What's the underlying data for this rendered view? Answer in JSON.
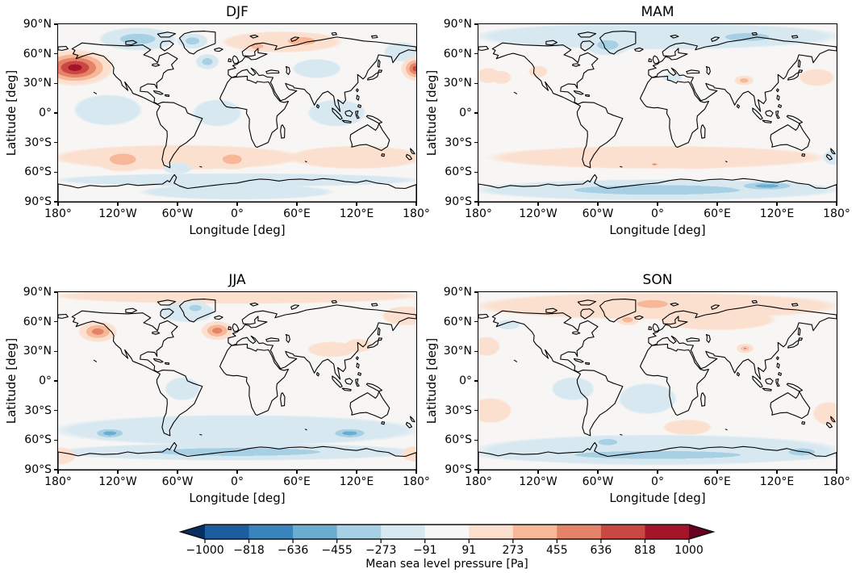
{
  "figure": {
    "panels": [
      {
        "title": "DJF",
        "xlabel": "Longitude [deg]",
        "ylabel": "Latitude [deg]",
        "xticks": [
          "180°",
          "120°W",
          "60°W",
          "0°",
          "60°E",
          "120°E",
          "180°"
        ],
        "yticks": [
          "90°N",
          "60°N",
          "30°N",
          "0°",
          "30°S",
          "60°S",
          "90°S"
        ]
      },
      {
        "title": "MAM",
        "xlabel": "Longitude [deg]",
        "ylabel": "Latitude [deg]",
        "xticks": [
          "180°",
          "120°W",
          "60°W",
          "0°",
          "60°E",
          "120°E",
          "180°"
        ],
        "yticks": [
          "90°N",
          "60°N",
          "30°N",
          "0°",
          "30°S",
          "60°S",
          "90°S"
        ]
      },
      {
        "title": "JJA",
        "xlabel": "Longitude [deg]",
        "ylabel": "Latitude [deg]",
        "xticks": [
          "180°",
          "120°W",
          "60°W",
          "0°",
          "60°E",
          "120°E",
          "180°"
        ],
        "yticks": [
          "90°N",
          "60°N",
          "30°N",
          "0°",
          "30°S",
          "60°S",
          "90°S"
        ]
      },
      {
        "title": "SON",
        "xlabel": "Longitude [deg]",
        "ylabel": "Latitude [deg]",
        "xticks": [
          "180°",
          "120°W",
          "60°W",
          "0°",
          "60°E",
          "120°E",
          "180°"
        ],
        "yticks": [
          "90°N",
          "60°N",
          "30°N",
          "0°",
          "30°S",
          "60°S",
          "90°S"
        ]
      }
    ],
    "colorbar": {
      "label": "Mean sea level pressure [Pa]",
      "tick_labels": [
        "−1000",
        "−818",
        "−636",
        "−455",
        "−273",
        "−91",
        "91",
        "273",
        "455",
        "636",
        "818",
        "1000"
      ],
      "colors": [
        "#053061",
        "#1c5da0",
        "#3884bb",
        "#6bacd1",
        "#a7d0e4",
        "#d7e8f1",
        "#f7f7f7",
        "#fce0cf",
        "#f7b799",
        "#e58368",
        "#ca4842",
        "#a61429",
        "#67001f"
      ]
    }
  },
  "chart_data": {
    "type": "heatmap",
    "subtype": "filled-contour world maps, 2x2 seasonal grid",
    "x": {
      "label": "Longitude [deg]",
      "range": [
        -180,
        180
      ],
      "ticks_deg": [
        -180,
        -120,
        -60,
        0,
        60,
        120,
        180
      ]
    },
    "y": {
      "label": "Latitude [deg]",
      "range": [
        -90,
        90
      ],
      "ticks_deg": [
        90,
        60,
        30,
        0,
        -30,
        -60,
        -90
      ]
    },
    "colorbar": {
      "label": "Mean sea level pressure [Pa]",
      "levels_pa": [
        -1000,
        -818,
        -636,
        -455,
        -273,
        -91,
        91,
        273,
        455,
        636,
        818,
        1000
      ],
      "colormap": "RdBu_r",
      "extend": "both"
    },
    "panels": [
      {
        "season": "DJF",
        "anomalies": [
          {
            "lon": -163,
            "lat": 46,
            "rx_deg": 40,
            "ry_deg": 19,
            "peak_pa": 950
          },
          {
            "lon": 180,
            "lat": 45,
            "rx_deg": 16,
            "ry_deg": 13,
            "peak_pa": 700
          },
          {
            "lon": 20,
            "lat": 68,
            "rx_deg": 14,
            "ry_deg": 7,
            "peak_pa": 430
          },
          {
            "lon": 65,
            "lat": 73,
            "rx_deg": 32,
            "ry_deg": 9,
            "peak_pa": 430
          },
          {
            "lon": -115,
            "lat": -47,
            "rx_deg": 30,
            "ry_deg": 13,
            "peak_pa": 430
          },
          {
            "lon": -5,
            "lat": -47,
            "rx_deg": 22,
            "ry_deg": 11,
            "peak_pa": 430
          },
          {
            "lon": -100,
            "lat": 75,
            "rx_deg": 40,
            "ry_deg": 12,
            "peak_pa": -420
          },
          {
            "lon": -45,
            "lat": 73,
            "rx_deg": 16,
            "ry_deg": 8,
            "peak_pa": -300
          },
          {
            "lon": -30,
            "lat": 52,
            "rx_deg": 12,
            "ry_deg": 8,
            "peak_pa": -430
          },
          {
            "lon": 45,
            "lat": 72,
            "rx_deg": 62,
            "ry_deg": 11,
            "peak_pa": 230
          },
          {
            "lon": 165,
            "lat": 62,
            "rx_deg": 18,
            "ry_deg": 10,
            "peak_pa": -180
          },
          {
            "lon": 80,
            "lat": 45,
            "rx_deg": 25,
            "ry_deg": 10,
            "peak_pa": -140
          },
          {
            "lon": -130,
            "lat": 3,
            "rx_deg": 35,
            "ry_deg": 16,
            "peak_pa": -180
          },
          {
            "lon": -20,
            "lat": 0,
            "rx_deg": 25,
            "ry_deg": 14,
            "peak_pa": -160
          },
          {
            "lon": 100,
            "lat": 0,
            "rx_deg": 30,
            "ry_deg": 14,
            "peak_pa": -150
          },
          {
            "lon": -60,
            "lat": -56,
            "rx_deg": 15,
            "ry_deg": 6,
            "peak_pa": -160
          },
          {
            "lon": -60,
            "lat": -45,
            "rx_deg": 130,
            "ry_deg": 13,
            "peak_pa": 190
          },
          {
            "lon": 120,
            "lat": -45,
            "rx_deg": 70,
            "ry_deg": 12,
            "peak_pa": 210
          },
          {
            "lon": 0,
            "lat": -68,
            "rx_deg": 190,
            "ry_deg": 7,
            "peak_pa": -140
          },
          {
            "lon": 0,
            "lat": -80,
            "rx_deg": 100,
            "ry_deg": 8,
            "peak_pa": -140
          }
        ]
      },
      {
        "season": "MAM",
        "anomalies": [
          {
            "lon": -50,
            "lat": 69,
            "rx_deg": 24,
            "ry_deg": 11,
            "peak_pa": -380
          },
          {
            "lon": 90,
            "lat": 77,
            "rx_deg": 50,
            "ry_deg": 9,
            "peak_pa": -330
          },
          {
            "lon": 87,
            "lat": 33,
            "rx_deg": 10,
            "ry_deg": 5,
            "peak_pa": 380
          },
          {
            "lon": -3,
            "lat": -52,
            "rx_deg": 5,
            "ry_deg": 2,
            "peak_pa": 500
          },
          {
            "lon": -170,
            "lat": 38,
            "rx_deg": 12,
            "ry_deg": 8,
            "peak_pa": 180
          },
          {
            "lon": -157,
            "lat": 36,
            "rx_deg": 10,
            "ry_deg": 7,
            "peak_pa": 170
          },
          {
            "lon": -120,
            "lat": 42,
            "rx_deg": 10,
            "ry_deg": 6,
            "peak_pa": 160
          },
          {
            "lon": 160,
            "lat": 36,
            "rx_deg": 18,
            "ry_deg": 9,
            "peak_pa": 180
          },
          {
            "lon": 15,
            "lat": 36,
            "rx_deg": 10,
            "ry_deg": 4,
            "peak_pa": -140
          },
          {
            "lon": 178,
            "lat": -45,
            "rx_deg": 12,
            "ry_deg": 8,
            "peak_pa": -200
          },
          {
            "lon": 40,
            "lat": -48,
            "rx_deg": 50,
            "ry_deg": 9,
            "peak_pa": 250
          },
          {
            "lon": -45,
            "lat": -45,
            "rx_deg": 30,
            "ry_deg": 10,
            "peak_pa": 220
          },
          {
            "lon": 0,
            "lat": 78,
            "rx_deg": 190,
            "ry_deg": 14,
            "peak_pa": -260
          },
          {
            "lon": 0,
            "lat": -45,
            "rx_deg": 175,
            "ry_deg": 12,
            "peak_pa": 190
          },
          {
            "lon": 110,
            "lat": -74,
            "rx_deg": 40,
            "ry_deg": 6,
            "peak_pa": -480
          },
          {
            "lon": 0,
            "lat": -78,
            "rx_deg": 190,
            "ry_deg": 11,
            "peak_pa": -300
          }
        ]
      },
      {
        "season": "JJA",
        "anomalies": [
          {
            "lon": -140,
            "lat": 50,
            "rx_deg": 20,
            "ry_deg": 11,
            "peak_pa": 500
          },
          {
            "lon": -20,
            "lat": 51,
            "rx_deg": 17,
            "ry_deg": 10,
            "peak_pa": 480
          },
          {
            "lon": -128,
            "lat": -53,
            "rx_deg": 22,
            "ry_deg": 7,
            "peak_pa": -560
          },
          {
            "lon": 113,
            "lat": -53,
            "rx_deg": 25,
            "ry_deg": 7,
            "peak_pa": -560
          },
          {
            "lon": -42,
            "lat": 74,
            "rx_deg": 14,
            "ry_deg": 7,
            "peak_pa": -340
          },
          {
            "lon": -50,
            "lat": 70,
            "rx_deg": 28,
            "ry_deg": 11,
            "peak_pa": -250
          },
          {
            "lon": 95,
            "lat": 32,
            "rx_deg": 25,
            "ry_deg": 8,
            "peak_pa": 190
          },
          {
            "lon": 122,
            "lat": 36,
            "rx_deg": 14,
            "ry_deg": 7,
            "peak_pa": 180
          },
          {
            "lon": 170,
            "lat": 66,
            "rx_deg": 25,
            "ry_deg": 10,
            "peak_pa": 230
          },
          {
            "lon": 0,
            "lat": 86,
            "rx_deg": 190,
            "ry_deg": 8,
            "peak_pa": 220
          },
          {
            "lon": -178,
            "lat": -76,
            "rx_deg": 16,
            "ry_deg": 9,
            "peak_pa": 210
          },
          {
            "lon": 178,
            "lat": -74,
            "rx_deg": 13,
            "ry_deg": 8,
            "peak_pa": 210
          },
          {
            "lon": -55,
            "lat": -8,
            "rx_deg": 18,
            "ry_deg": 12,
            "peak_pa": -140
          },
          {
            "lon": 0,
            "lat": -50,
            "rx_deg": 190,
            "ry_deg": 16,
            "peak_pa": -230
          },
          {
            "lon": 0,
            "lat": -72,
            "rx_deg": 190,
            "ry_deg": 9,
            "peak_pa": -280
          }
        ]
      },
      {
        "season": "SON",
        "anomalies": [
          {
            "lon": 88,
            "lat": 33,
            "rx_deg": 3,
            "ry_deg": 1.5,
            "peak_pa": 650
          },
          {
            "lon": 88,
            "lat": 33,
            "rx_deg": 9,
            "ry_deg": 5,
            "peak_pa": 430
          },
          {
            "lon": -30,
            "lat": 62,
            "rx_deg": 12,
            "ry_deg": 6,
            "peak_pa": 310
          },
          {
            "lon": -5,
            "lat": 78,
            "rx_deg": 35,
            "ry_deg": 9,
            "peak_pa": 330
          },
          {
            "lon": -50,
            "lat": -62,
            "rx_deg": 22,
            "ry_deg": 7,
            "peak_pa": -380
          },
          {
            "lon": 145,
            "lat": -72,
            "rx_deg": 30,
            "ry_deg": 8,
            "peak_pa": -350
          },
          {
            "lon": -150,
            "lat": 57,
            "rx_deg": 12,
            "ry_deg": 5,
            "peak_pa": -180
          },
          {
            "lon": -172,
            "lat": 35,
            "rx_deg": 14,
            "ry_deg": 10,
            "peak_pa": 190
          },
          {
            "lon": -168,
            "lat": -30,
            "rx_deg": 22,
            "ry_deg": 13,
            "peak_pa": 190
          },
          {
            "lon": 172,
            "lat": -33,
            "rx_deg": 16,
            "ry_deg": 12,
            "peak_pa": 210
          },
          {
            "lon": 30,
            "lat": -47,
            "rx_deg": 25,
            "ry_deg": 8,
            "peak_pa": 160
          },
          {
            "lon": 60,
            "lat": 62,
            "rx_deg": 60,
            "ry_deg": 11,
            "peak_pa": 180
          },
          {
            "lon": 0,
            "lat": 76,
            "rx_deg": 190,
            "ry_deg": 14,
            "peak_pa": 240
          },
          {
            "lon": -10,
            "lat": -18,
            "rx_deg": 30,
            "ry_deg": 16,
            "peak_pa": -130
          },
          {
            "lon": -85,
            "lat": -8,
            "rx_deg": 22,
            "ry_deg": 12,
            "peak_pa": -120
          },
          {
            "lon": 0,
            "lat": -75,
            "rx_deg": 190,
            "ry_deg": 9,
            "peak_pa": -300
          },
          {
            "lon": 0,
            "lat": -70,
            "rx_deg": 190,
            "ry_deg": 16,
            "peak_pa": -240
          }
        ]
      }
    ]
  }
}
